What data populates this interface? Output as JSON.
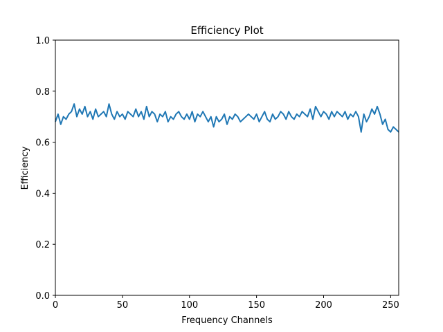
{
  "chart_data": {
    "type": "line",
    "title": "Efficiency Plot",
    "xlabel": "Frequency Channels",
    "ylabel": "Efficiency",
    "xlim": [
      0,
      256
    ],
    "ylim": [
      0.0,
      1.0
    ],
    "xticks": [
      0,
      50,
      100,
      150,
      200,
      250
    ],
    "xtick_labels": [
      "0",
      "50",
      "100",
      "150",
      "200",
      "250"
    ],
    "yticks": [
      0.0,
      0.2,
      0.4,
      0.6,
      0.8,
      1.0
    ],
    "ytick_labels": [
      "0.0",
      "0.2",
      "0.4",
      "0.6",
      "0.8",
      "1.0"
    ],
    "grid": false,
    "series": [
      {
        "color": "#1f77b4",
        "x": [
          0,
          2,
          4,
          6,
          8,
          10,
          12,
          14,
          16,
          18,
          20,
          22,
          24,
          26,
          28,
          30,
          32,
          34,
          36,
          38,
          40,
          42,
          44,
          46,
          48,
          50,
          52,
          54,
          56,
          58,
          60,
          62,
          64,
          66,
          68,
          70,
          72,
          74,
          76,
          78,
          80,
          82,
          84,
          86,
          88,
          90,
          92,
          94,
          96,
          98,
          100,
          102,
          104,
          106,
          108,
          110,
          112,
          114,
          116,
          118,
          120,
          122,
          124,
          126,
          128,
          130,
          132,
          134,
          136,
          138,
          140,
          142,
          144,
          146,
          148,
          150,
          152,
          154,
          156,
          158,
          160,
          162,
          164,
          166,
          168,
          170,
          172,
          174,
          176,
          178,
          180,
          182,
          184,
          186,
          188,
          190,
          192,
          194,
          196,
          198,
          200,
          202,
          204,
          206,
          208,
          210,
          212,
          214,
          216,
          218,
          220,
          222,
          224,
          226,
          228,
          230,
          232,
          234,
          236,
          238,
          240,
          242,
          244,
          246,
          248,
          250,
          252,
          254,
          256
        ],
        "y": [
          0.68,
          0.71,
          0.67,
          0.7,
          0.69,
          0.71,
          0.72,
          0.75,
          0.7,
          0.73,
          0.71,
          0.74,
          0.7,
          0.72,
          0.69,
          0.73,
          0.7,
          0.71,
          0.72,
          0.7,
          0.75,
          0.71,
          0.69,
          0.72,
          0.7,
          0.71,
          0.69,
          0.72,
          0.71,
          0.7,
          0.73,
          0.7,
          0.72,
          0.69,
          0.74,
          0.7,
          0.72,
          0.71,
          0.68,
          0.71,
          0.7,
          0.72,
          0.68,
          0.7,
          0.69,
          0.71,
          0.72,
          0.7,
          0.69,
          0.71,
          0.69,
          0.72,
          0.68,
          0.71,
          0.7,
          0.72,
          0.7,
          0.68,
          0.7,
          0.66,
          0.7,
          0.68,
          0.69,
          0.71,
          0.67,
          0.7,
          0.69,
          0.71,
          0.7,
          0.68,
          0.69,
          0.7,
          0.71,
          0.7,
          0.69,
          0.71,
          0.68,
          0.7,
          0.72,
          0.69,
          0.68,
          0.71,
          0.69,
          0.7,
          0.72,
          0.71,
          0.69,
          0.72,
          0.7,
          0.69,
          0.71,
          0.7,
          0.72,
          0.71,
          0.7,
          0.73,
          0.69,
          0.74,
          0.72,
          0.7,
          0.72,
          0.71,
          0.69,
          0.72,
          0.7,
          0.72,
          0.71,
          0.7,
          0.72,
          0.69,
          0.71,
          0.7,
          0.72,
          0.7,
          0.64,
          0.71,
          0.68,
          0.7,
          0.73,
          0.71,
          0.74,
          0.71,
          0.67,
          0.69,
          0.65,
          0.64,
          0.66,
          0.65,
          0.64
        ]
      }
    ]
  }
}
